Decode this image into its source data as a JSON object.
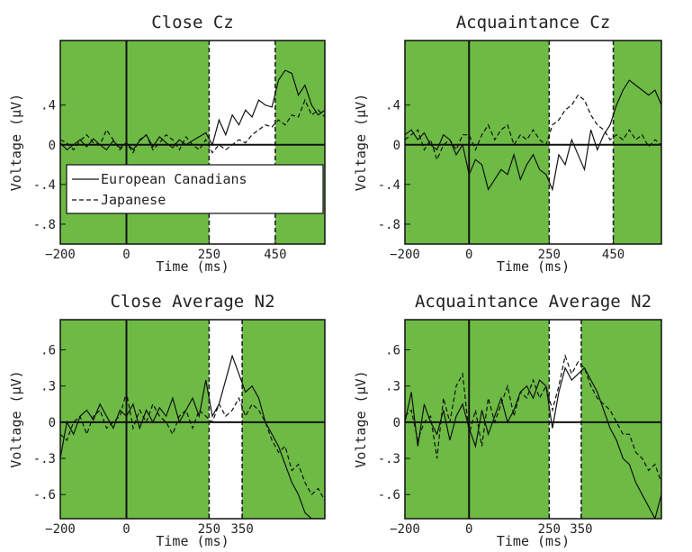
{
  "colors": {
    "shade": "#6dbb45",
    "line": "#111111",
    "frame": "#111111",
    "background": "#ffffff"
  },
  "chart_data": [
    {
      "type": "line",
      "title": "Close Cz",
      "xlabel": "Time (ms)",
      "ylabel": "Voltage (μV)",
      "xlim": [
        -200,
        600
      ],
      "ylim": [
        -1.0,
        1.05
      ],
      "xticks": [
        -200,
        0,
        250,
        450
      ],
      "yticks": [
        0.4,
        0,
        -0.4,
        -0.8
      ],
      "ytick_labels": [
        ".4",
        "0",
        "-.4",
        "-.8"
      ],
      "shaded_regions": [
        [
          -200,
          250
        ],
        [
          450,
          600
        ]
      ],
      "legend": {
        "placement": "lower-left",
        "entries": [
          "European Canadians",
          "Japanese"
        ]
      },
      "series": [
        {
          "name": "European Canadians",
          "style": "solid",
          "x": [
            -200,
            -180,
            -160,
            -140,
            -120,
            -100,
            -80,
            -60,
            -40,
            -20,
            0,
            20,
            40,
            60,
            80,
            100,
            120,
            140,
            160,
            180,
            200,
            220,
            240,
            260,
            280,
            300,
            320,
            340,
            360,
            380,
            400,
            420,
            440,
            460,
            480,
            500,
            520,
            540,
            560,
            580,
            600
          ],
          "y": [
            0.02,
            -0.05,
            0.0,
            0.05,
            -0.02,
            0.06,
            0.0,
            -0.05,
            0.04,
            -0.03,
            0.02,
            -0.05,
            0.04,
            0.1,
            -0.02,
            0.08,
            0.02,
            -0.03,
            0.05,
            0.0,
            0.04,
            0.08,
            0.12,
            0.0,
            0.25,
            0.1,
            0.3,
            0.2,
            0.35,
            0.28,
            0.45,
            0.4,
            0.38,
            0.65,
            0.75,
            0.72,
            0.5,
            0.6,
            0.4,
            0.3,
            0.35
          ]
        },
        {
          "name": "Japanese",
          "style": "dashed",
          "x": [
            -200,
            -180,
            -160,
            -140,
            -120,
            -100,
            -80,
            -60,
            -40,
            -20,
            0,
            20,
            40,
            60,
            80,
            100,
            120,
            140,
            160,
            180,
            200,
            220,
            240,
            260,
            280,
            300,
            320,
            340,
            360,
            380,
            400,
            420,
            440,
            460,
            480,
            500,
            520,
            540,
            560,
            580,
            600
          ],
          "y": [
            0.05,
            0.02,
            -0.05,
            0.04,
            0.1,
            0.02,
            0.0,
            0.15,
            0.05,
            -0.05,
            0.02,
            -0.08,
            0.05,
            0.1,
            -0.05,
            0.02,
            0.1,
            0.05,
            -0.05,
            0.08,
            0.0,
            -0.05,
            0.05,
            -0.08,
            0.0,
            -0.05,
            0.0,
            0.05,
            0.02,
            0.1,
            0.15,
            0.2,
            0.18,
            0.25,
            0.2,
            0.3,
            0.28,
            0.45,
            0.3,
            0.35,
            0.28
          ]
        }
      ]
    },
    {
      "type": "line",
      "title": "Acquaintance Cz",
      "xlabel": "Time (ms)",
      "ylabel": "Voltage (μV)",
      "xlim": [
        -200,
        600
      ],
      "ylim": [
        -1.0,
        1.05
      ],
      "xticks": [
        -200,
        0,
        250,
        450
      ],
      "yticks": [
        0.4,
        0,
        -0.4,
        -0.8
      ],
      "ytick_labels": [
        ".4",
        "0",
        "-.4",
        "-.8"
      ],
      "shaded_regions": [
        [
          -200,
          250
        ],
        [
          450,
          600
        ]
      ],
      "series": [
        {
          "name": "European Canadians",
          "style": "solid",
          "x": [
            -200,
            -180,
            -160,
            -140,
            -120,
            -100,
            -80,
            -60,
            -40,
            -20,
            0,
            20,
            40,
            60,
            80,
            100,
            120,
            140,
            160,
            180,
            200,
            220,
            240,
            260,
            280,
            300,
            320,
            340,
            360,
            380,
            400,
            420,
            440,
            460,
            480,
            500,
            520,
            540,
            560,
            580,
            600
          ],
          "y": [
            0.1,
            0.15,
            0.05,
            0.12,
            0.0,
            -0.05,
            0.1,
            0.05,
            -0.1,
            0.0,
            -0.3,
            -0.15,
            -0.2,
            -0.45,
            -0.35,
            -0.25,
            -0.3,
            -0.1,
            -0.35,
            -0.2,
            -0.1,
            -0.25,
            -0.3,
            -0.45,
            -0.1,
            -0.2,
            0.05,
            -0.1,
            -0.25,
            0.15,
            -0.05,
            0.1,
            0.2,
            0.4,
            0.55,
            0.65,
            0.6,
            0.55,
            0.5,
            0.55,
            0.4
          ]
        },
        {
          "name": "Japanese",
          "style": "dashed",
          "x": [
            -200,
            -180,
            -160,
            -140,
            -120,
            -100,
            -80,
            -60,
            -40,
            -20,
            0,
            20,
            40,
            60,
            80,
            100,
            120,
            140,
            160,
            180,
            200,
            220,
            240,
            260,
            280,
            300,
            320,
            340,
            360,
            380,
            400,
            420,
            440,
            460,
            480,
            500,
            520,
            540,
            560,
            580,
            600
          ],
          "y": [
            0.05,
            0.1,
            0.15,
            -0.05,
            0.05,
            -0.15,
            0.0,
            0.05,
            -0.05,
            0.1,
            0.1,
            -0.05,
            0.1,
            0.2,
            0.05,
            0.15,
            0.2,
            0.0,
            0.1,
            0.05,
            0.15,
            0.05,
            0.0,
            0.2,
            0.25,
            0.35,
            0.4,
            0.5,
            0.45,
            0.3,
            0.2,
            0.15,
            0.05,
            0.1,
            0.05,
            0.15,
            0.05,
            0.1,
            -0.02,
            0.05,
            0.0
          ]
        }
      ]
    },
    {
      "type": "line",
      "title": "Close Average N2",
      "xlabel": "Time (ms)",
      "ylabel": "Voltage (μV)",
      "xlim": [
        -200,
        600
      ],
      "ylim": [
        -0.8,
        0.85
      ],
      "xticks": [
        -200,
        0,
        250,
        350
      ],
      "yticks": [
        0.6,
        0.3,
        0,
        -0.3,
        -0.6
      ],
      "ytick_labels": [
        ".6",
        ".3",
        "0",
        "-.3",
        "-.6"
      ],
      "shaded_regions": [
        [
          -200,
          250
        ],
        [
          350,
          600
        ]
      ],
      "series": [
        {
          "name": "European Canadians",
          "style": "solid",
          "x": [
            -200,
            -180,
            -160,
            -140,
            -120,
            -100,
            -80,
            -60,
            -40,
            -20,
            0,
            20,
            40,
            60,
            80,
            100,
            120,
            140,
            160,
            180,
            200,
            220,
            240,
            260,
            280,
            300,
            320,
            340,
            360,
            380,
            400,
            420,
            440,
            460,
            480,
            500,
            520,
            540,
            560,
            580,
            600
          ],
          "y": [
            -0.3,
            0.0,
            -0.1,
            0.05,
            0.1,
            0.02,
            0.15,
            0.05,
            -0.05,
            0.1,
            0.05,
            0.15,
            -0.05,
            0.1,
            0.0,
            0.12,
            0.05,
            0.2,
            0.0,
            0.1,
            0.2,
            0.05,
            0.35,
            0.05,
            0.15,
            0.35,
            0.55,
            0.4,
            0.25,
            0.3,
            0.2,
            0.0,
            -0.1,
            -0.2,
            -0.35,
            -0.5,
            -0.6,
            -0.75,
            -0.8,
            -0.8,
            -0.8
          ]
        },
        {
          "name": "Japanese",
          "style": "dashed",
          "x": [
            -200,
            -180,
            -160,
            -140,
            -120,
            -100,
            -80,
            -60,
            -40,
            -20,
            0,
            20,
            40,
            60,
            80,
            100,
            120,
            140,
            160,
            180,
            200,
            220,
            240,
            260,
            280,
            300,
            320,
            340,
            360,
            380,
            400,
            420,
            440,
            460,
            480,
            500,
            520,
            540,
            560,
            580,
            600
          ],
          "y": [
            -0.1,
            -0.15,
            0.0,
            0.05,
            -0.1,
            0.05,
            0.1,
            -0.05,
            0.0,
            0.05,
            0.25,
            -0.05,
            0.1,
            0.0,
            0.15,
            0.05,
            0.0,
            -0.1,
            0.05,
            0.1,
            -0.05,
            0.1,
            0.05,
            0.0,
            0.15,
            0.05,
            0.1,
            0.2,
            0.05,
            0.15,
            0.1,
            0.0,
            -0.15,
            -0.25,
            -0.2,
            -0.4,
            -0.35,
            -0.5,
            -0.6,
            -0.55,
            -0.65
          ]
        }
      ]
    },
    {
      "type": "line",
      "title": "Acquaintance Average N2",
      "xlabel": "Time (ms)",
      "ylabel": "Voltage (μV)",
      "xlim": [
        -200,
        600
      ],
      "ylim": [
        -0.8,
        0.85
      ],
      "xticks": [
        -200,
        0,
        250,
        350
      ],
      "yticks": [
        0.6,
        0.3,
        0,
        -0.3,
        -0.6
      ],
      "ytick_labels": [
        ".6",
        ".3",
        "0",
        "-.3",
        "-.6"
      ],
      "shaded_regions": [
        [
          -200,
          250
        ],
        [
          350,
          600
        ]
      ],
      "series": [
        {
          "name": "European Canadians",
          "style": "solid",
          "x": [
            -200,
            -180,
            -160,
            -140,
            -120,
            -100,
            -80,
            -60,
            -40,
            -20,
            0,
            20,
            40,
            60,
            80,
            100,
            120,
            140,
            160,
            180,
            200,
            220,
            240,
            260,
            280,
            300,
            320,
            340,
            360,
            380,
            400,
            420,
            440,
            460,
            480,
            500,
            520,
            540,
            560,
            580,
            600
          ],
          "y": [
            0.0,
            0.25,
            -0.2,
            0.15,
            0.0,
            -0.1,
            0.1,
            -0.15,
            0.05,
            0.15,
            -0.05,
            -0.2,
            0.1,
            -0.1,
            0.05,
            0.2,
            0.0,
            0.1,
            0.25,
            0.3,
            0.2,
            0.35,
            0.3,
            -0.05,
            0.25,
            0.45,
            0.35,
            0.4,
            0.45,
            0.35,
            0.25,
            0.1,
            -0.05,
            -0.15,
            -0.3,
            -0.35,
            -0.5,
            -0.6,
            -0.7,
            -0.8,
            -0.6
          ]
        },
        {
          "name": "Japanese",
          "style": "dashed",
          "x": [
            -200,
            -180,
            -160,
            -140,
            -120,
            -100,
            -80,
            -60,
            -40,
            -20,
            0,
            20,
            40,
            60,
            80,
            100,
            120,
            140,
            160,
            180,
            200,
            220,
            240,
            260,
            280,
            300,
            320,
            340,
            360,
            380,
            400,
            420,
            440,
            460,
            480,
            500,
            520,
            540,
            560,
            580,
            600
          ],
          "y": [
            0.05,
            0.1,
            -0.15,
            0.0,
            0.05,
            -0.3,
            0.2,
            0.0,
            0.3,
            0.4,
            -0.1,
            0.1,
            -0.2,
            0.2,
            0.0,
            0.15,
            0.3,
            0.05,
            0.25,
            0.2,
            0.35,
            0.2,
            0.3,
            0.1,
            0.3,
            0.55,
            0.4,
            0.5,
            0.45,
            0.3,
            0.2,
            0.15,
            0.1,
            0.0,
            -0.1,
            -0.1,
            -0.25,
            -0.3,
            -0.4,
            -0.35,
            -0.5
          ]
        }
      ]
    }
  ]
}
